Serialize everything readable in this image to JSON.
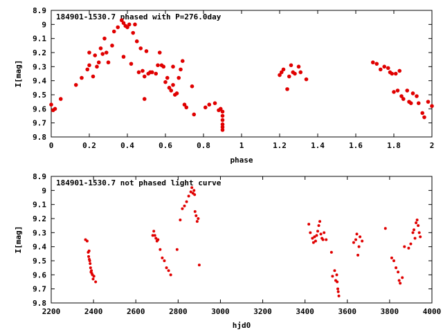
{
  "chart_data": [
    {
      "type": "scatter",
      "title": "184901-1530.7 phased with P=276.0day",
      "xlabel": "phase",
      "ylabel": "I[mag]",
      "xlim": [
        0,
        2
      ],
      "ylim": [
        9.8,
        8.9
      ],
      "y_reversed": true,
      "xticks": [
        "0",
        "0.2",
        "0.4",
        "0.6",
        "0.8",
        "1",
        "1.2",
        "1.4",
        "1.6",
        "1.8",
        "2"
      ],
      "yticks": [
        "8.9",
        "9",
        "9.1",
        "9.2",
        "9.3",
        "9.4",
        "9.5",
        "9.6",
        "9.7",
        "9.8"
      ],
      "grid": false,
      "marker_color": "#e00000",
      "series": [
        {
          "x": [
            0.0,
            0.01,
            0.02,
            0.05,
            0.13,
            0.16,
            0.19,
            0.2,
            0.2,
            0.22,
            0.23,
            0.24,
            0.25,
            0.26,
            0.27,
            0.28,
            0.29,
            0.3,
            0.32,
            0.33,
            0.35,
            0.37,
            0.38,
            0.38,
            0.39,
            0.4,
            0.41,
            0.42,
            0.43,
            0.44,
            0.45,
            0.46,
            0.47,
            0.48,
            0.49,
            0.49,
            0.5,
            0.51,
            0.52,
            0.53,
            0.55,
            0.56,
            0.57,
            0.58,
            0.59,
            0.6,
            0.61,
            0.62,
            0.63,
            0.64,
            0.64,
            0.65,
            0.66,
            0.67,
            0.68,
            0.69,
            0.7,
            0.71,
            0.74,
            0.75,
            0.81,
            0.83,
            0.86,
            0.88,
            0.89,
            0.9,
            0.9,
            0.9,
            0.9,
            0.9,
            0.9,
            1.2,
            1.21,
            1.22,
            1.24,
            1.25,
            1.26,
            1.27,
            1.28,
            1.3,
            1.31,
            1.34,
            1.69,
            1.71,
            1.73,
            1.75,
            1.77,
            1.78,
            1.79,
            1.8,
            1.81,
            1.82,
            1.83,
            1.84,
            1.85,
            1.87,
            1.88,
            1.89,
            1.9,
            1.92,
            1.93,
            1.95,
            1.96,
            1.98,
            2.0
          ],
          "y": [
            9.57,
            9.61,
            9.6,
            9.53,
            9.43,
            9.38,
            9.32,
            9.2,
            9.29,
            9.37,
            9.22,
            9.3,
            9.27,
            9.17,
            9.21,
            9.1,
            9.2,
            9.27,
            9.15,
            9.05,
            9.02,
            8.97,
            8.99,
            9.23,
            9.01,
            9.02,
            9.0,
            9.28,
            9.06,
            9.0,
            9.12,
            9.34,
            9.17,
            9.33,
            9.37,
            9.53,
            9.19,
            9.35,
            9.34,
            9.34,
            9.35,
            9.29,
            9.2,
            9.29,
            9.3,
            9.41,
            9.38,
            9.45,
            9.47,
            9.3,
            9.43,
            9.5,
            9.49,
            9.38,
            9.32,
            9.26,
            9.57,
            9.59,
            9.44,
            9.64,
            9.59,
            9.57,
            9.56,
            9.61,
            9.6,
            9.62,
            9.65,
            9.68,
            9.71,
            9.73,
            9.75,
            9.36,
            9.34,
            9.32,
            9.46,
            9.37,
            9.29,
            9.34,
            9.35,
            9.3,
            9.34,
            9.39,
            9.27,
            9.28,
            9.32,
            9.3,
            9.31,
            9.34,
            9.35,
            9.48,
            9.35,
            9.47,
            9.33,
            9.51,
            9.53,
            9.47,
            9.55,
            9.56,
            9.49,
            9.51,
            9.56,
            9.63,
            9.66,
            9.55,
            9.58
          ]
        }
      ]
    },
    {
      "type": "scatter",
      "title": "184901-1530.7 not phased light curve",
      "xlabel": "hjd0",
      "ylabel": "I[mag]",
      "xlim": [
        2200,
        4000
      ],
      "ylim": [
        9.8,
        8.9
      ],
      "y_reversed": true,
      "xticks": [
        "2200",
        "2400",
        "2600",
        "2800",
        "3000",
        "3200",
        "3400",
        "3600",
        "3800",
        "4000"
      ],
      "yticks": [
        "8.9",
        "9",
        "9.1",
        "9.2",
        "9.3",
        "9.4",
        "9.5",
        "9.6",
        "9.7",
        "9.8"
      ],
      "grid": false,
      "marker_color": "#e00000",
      "series": [
        {
          "x": [
            2362,
            2370,
            2375,
            2377,
            2379,
            2380,
            2382,
            2384,
            2386,
            2388,
            2390,
            2392,
            2395,
            2398,
            2402,
            2410,
            2680,
            2685,
            2690,
            2695,
            2700,
            2705,
            2715,
            2725,
            2735,
            2745,
            2755,
            2765,
            2795,
            2810,
            2820,
            2830,
            2840,
            2850,
            2860,
            2865,
            2870,
            2875,
            2878,
            2880,
            2885,
            2890,
            2895,
            2900,
            3418,
            3425,
            3435,
            3440,
            3445,
            3450,
            3455,
            3460,
            3465,
            3470,
            3475,
            3480,
            3485,
            3490,
            3500,
            3525,
            3530,
            3540,
            3545,
            3550,
            3552,
            3555,
            3557,
            3560,
            3630,
            3640,
            3645,
            3650,
            3655,
            3660,
            3670,
            3780,
            3810,
            3820,
            3830,
            3840,
            3845,
            3850,
            3860,
            3870,
            3890,
            3900,
            3910,
            3915,
            3920,
            3925,
            3930,
            3935,
            3940,
            3945
          ],
          "y": [
            9.35,
            9.36,
            9.44,
            9.47,
            9.43,
            9.49,
            9.5,
            9.52,
            9.55,
            9.58,
            9.57,
            9.59,
            9.6,
            9.63,
            9.61,
            9.65,
            9.32,
            9.29,
            9.32,
            9.34,
            9.36,
            9.35,
            9.42,
            9.48,
            9.5,
            9.55,
            9.57,
            9.6,
            9.42,
            9.21,
            9.13,
            9.11,
            9.08,
            9.04,
            9.01,
            8.98,
            9.02,
            9.0,
            9.03,
            9.15,
            9.18,
            9.22,
            9.2,
            9.53,
            9.24,
            9.3,
            9.34,
            9.37,
            9.33,
            9.36,
            9.32,
            9.29,
            9.25,
            9.22,
            9.31,
            9.34,
            9.35,
            9.3,
            9.35,
            9.44,
            9.61,
            9.57,
            9.64,
            9.6,
            9.65,
            9.7,
            9.72,
            9.75,
            9.37,
            9.35,
            9.31,
            9.46,
            9.4,
            9.33,
            9.36,
            9.27,
            9.48,
            9.5,
            9.55,
            9.58,
            9.64,
            9.66,
            9.62,
            9.4,
            9.41,
            9.38,
            9.3,
            9.28,
            9.34,
            9.23,
            9.21,
            9.25,
            9.3,
            9.33
          ]
        }
      ]
    }
  ]
}
